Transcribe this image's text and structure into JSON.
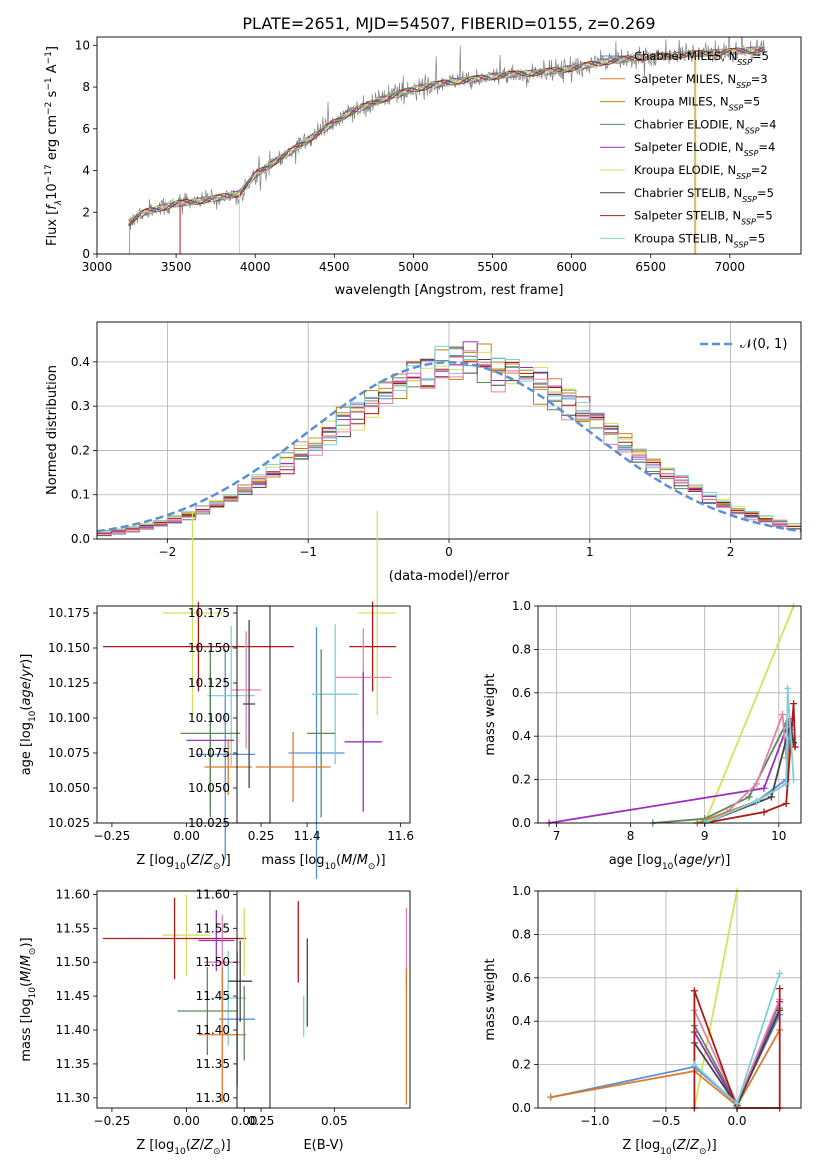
{
  "figure_title": "PLATE=2651, MJD=54507, FIBERID=0155, z=0.269",
  "colors": {
    "Chabrier MILES": "#5b8fd6",
    "Salpeter MILES": "#e07a2d",
    "Kroupa MILES": "#b8860b",
    "Chabrier ELODIE": "#5a8a5a",
    "Salpeter ELODIE": "#9b30c0",
    "Kroupa ELODIE": "#d2e35a",
    "Chabrier STELIB": "#444444",
    "Salpeter STELIB": "#b01818",
    "Kroupa STELIB": "#7fd0d8",
    "pink": "#e580b0"
  },
  "legend_spectrum": [
    {
      "model": "Chabrier MILES",
      "label": "Chabrier MILES, N",
      "sub": "SSP",
      "tail": "=5"
    },
    {
      "model": "Salpeter MILES",
      "label": "Salpeter MILES, N",
      "sub": "SSP",
      "tail": "=3"
    },
    {
      "model": "Kroupa MILES",
      "label": "Kroupa MILES, N",
      "sub": "SSP",
      "tail": "=5"
    },
    {
      "model": "Chabrier ELODIE",
      "label": "Chabrier ELODIE, N",
      "sub": "SSP",
      "tail": "=4"
    },
    {
      "model": "Salpeter ELODIE",
      "label": "Salpeter ELODIE, N",
      "sub": "SSP",
      "tail": "=4"
    },
    {
      "model": "Kroupa ELODIE",
      "label": "Kroupa ELODIE, N",
      "sub": "SSP",
      "tail": "=2"
    },
    {
      "model": "Chabrier STELIB",
      "label": "Chabrier STELIB, N",
      "sub": "SSP",
      "tail": "=5"
    },
    {
      "model": "Salpeter STELIB",
      "label": "Salpeter STELIB, N",
      "sub": "SSP",
      "tail": "=5"
    },
    {
      "model": "Kroupa STELIB",
      "label": "Kroupa STELIB, N",
      "sub": "SSP",
      "tail": "=5"
    }
  ],
  "chart_data": [
    {
      "id": "spectrum",
      "type": "line",
      "xlabel": "wavelength [Angstrom, rest frame]",
      "ylabel": "Flux [f_λ10^-17 erg cm^-2 s^-1 A^-1]",
      "xlim": [
        3000,
        7450
      ],
      "ylim": [
        0,
        10.4
      ],
      "xticks": [
        "3000",
        "3500",
        "4000",
        "4500",
        "5000",
        "5500",
        "6000",
        "6500",
        "7000"
      ],
      "yticks": [
        "0",
        "2",
        "4",
        "6",
        "8",
        "10"
      ],
      "grid": false,
      "continuum": [
        [
          3200,
          1.5
        ],
        [
          3300,
          2.0
        ],
        [
          3500,
          2.4
        ],
        [
          3700,
          2.6
        ],
        [
          3900,
          2.9
        ],
        [
          4000,
          3.8
        ],
        [
          4200,
          4.8
        ],
        [
          4400,
          5.8
        ],
        [
          4600,
          6.8
        ],
        [
          4800,
          7.4
        ],
        [
          5000,
          7.9
        ],
        [
          5200,
          8.2
        ],
        [
          5400,
          8.4
        ],
        [
          5600,
          8.6
        ],
        [
          5800,
          8.7
        ],
        [
          6000,
          8.9
        ],
        [
          6200,
          9.2
        ],
        [
          6400,
          9.4
        ],
        [
          6600,
          9.5
        ],
        [
          6800,
          9.6
        ],
        [
          7000,
          9.7
        ],
        [
          7200,
          9.8
        ]
      ],
      "spectrum_start": 3200,
      "spectrum_end": 7220,
      "legend_position": "upper right"
    },
    {
      "id": "residuals",
      "type": "histogram",
      "xlabel": "(data-model)/error",
      "ylabel": "Normed distribution",
      "xlim": [
        -2.5,
        2.5
      ],
      "ylim": [
        0,
        0.49
      ],
      "xticks": [
        "−2",
        "−1",
        "0",
        "1",
        "2"
      ],
      "yticks": [
        "0.0",
        "0.1",
        "0.2",
        "0.3",
        "0.4"
      ],
      "grid": true,
      "bin_width": 0.1,
      "reference_curve": {
        "name": "N(0,1)",
        "label": "𝒩(0, 1)",
        "mean": 0,
        "sigma": 1,
        "style": "dashed"
      },
      "legend_position": "upper right"
    },
    {
      "id": "age-vs-Z",
      "type": "errorbar",
      "xlabel": "Z [log10(Z/Z⊙)]",
      "ylabel": "age [log10(age/yr)]",
      "xlim": [
        -0.3,
        0.28
      ],
      "ylim": [
        10.025,
        10.18
      ],
      "xticks": [
        "−0.25",
        "0.00",
        "0.25"
      ],
      "yticks": [
        "10.025",
        "10.050",
        "10.075",
        "10.100",
        "10.125",
        "10.150",
        "10.175"
      ],
      "points": [
        {
          "model": "Kroupa ELODIE",
          "x": 0.02,
          "xerr": 0.1,
          "y": 10.175,
          "yerr": 0.073
        },
        {
          "model": "Salpeter STELIB",
          "x": 0.04,
          "xerr": 0.32,
          "y": 10.151,
          "yerr": 0.032
        },
        {
          "model": "Chabrier MILES",
          "x": 0.13,
          "xerr": 0.1,
          "y": 10.074,
          "yerr": 0.075
        },
        {
          "model": "pink",
          "x": 0.2,
          "xerr": 0.05,
          "y": 10.12,
          "yerr": 0.042
        },
        {
          "model": "Kroupa STELIB",
          "x": 0.15,
          "xerr": 0.08,
          "y": 10.116,
          "yerr": 0.05
        },
        {
          "model": "Salpeter ELODIE",
          "x": 0.08,
          "xerr": 0.08,
          "y": 10.084,
          "yerr": 0.05
        },
        {
          "model": "Chabrier ELODIE",
          "x": 0.08,
          "xerr": 0.1,
          "y": 10.089,
          "yerr": 0.06
        },
        {
          "model": "Salpeter MILES",
          "x": 0.14,
          "xerr": 0.08,
          "y": 10.065,
          "yerr": 0.02
        },
        {
          "model": "Chabrier STELIB",
          "x": 0.21,
          "xerr": 0.02,
          "y": 10.11,
          "yerr": 0.06
        }
      ]
    },
    {
      "id": "age-vs-mass",
      "type": "errorbar",
      "xlabel": "mass [log10(M/M⊙)]",
      "ylabel": "",
      "xlim": [
        11.25,
        11.62
      ],
      "ylim": [
        10.025,
        10.18
      ],
      "xticks": [
        "11.4",
        "11.6"
      ],
      "yticks": [
        "10.025",
        "10.050",
        "10.075",
        "10.100",
        "10.125",
        "10.150",
        "10.175"
      ],
      "points": [
        {
          "model": "Kroupa ELODIE",
          "x": 11.55,
          "xerr": 0.04,
          "y": 10.175,
          "yerr": 0.073
        },
        {
          "model": "Salpeter STELIB",
          "x": 11.54,
          "xerr": 0.05,
          "y": 10.151,
          "yerr": 0.032
        },
        {
          "model": "Chabrier MILES",
          "x": 11.42,
          "xerr": 0.06,
          "y": 10.075,
          "yerr": 0.09
        },
        {
          "model": "pink",
          "x": 11.52,
          "xerr": 0.06,
          "y": 10.129,
          "yerr": 0.035
        },
        {
          "model": "Kroupa STELIB",
          "x": 11.46,
          "xerr": 0.05,
          "y": 10.117,
          "yerr": 0.05
        },
        {
          "model": "Salpeter ELODIE",
          "x": 11.52,
          "xerr": 0.04,
          "y": 10.083,
          "yerr": 0.05
        },
        {
          "model": "Chabrier ELODIE",
          "x": 11.43,
          "xerr": 0.03,
          "y": 10.089,
          "yerr": 0.06
        },
        {
          "model": "Salpeter MILES",
          "x": 11.37,
          "xerr": 0.08,
          "y": 10.065,
          "yerr": 0.025
        }
      ]
    },
    {
      "id": "weight-vs-age",
      "type": "line",
      "xlabel": "age [log10(age/yr)]",
      "ylabel": "mass weight",
      "xlim": [
        6.75,
        10.3
      ],
      "ylim": [
        0,
        1
      ],
      "xticks": [
        "7",
        "8",
        "9",
        "10"
      ],
      "yticks": [
        "0.0",
        "0.2",
        "0.4",
        "0.6",
        "0.8",
        "1.0"
      ],
      "grid": true,
      "series": [
        {
          "model": "Kroupa ELODIE",
          "points": [
            [
              9.0,
              0.0
            ],
            [
              10.2,
              1.0
            ]
          ]
        },
        {
          "model": "Salpeter ELODIE",
          "points": [
            [
              6.9,
              0.0
            ],
            [
              9.8,
              0.16
            ],
            [
              10.15,
              0.48
            ],
            [
              10.2,
              0.37
            ]
          ]
        },
        {
          "model": "Chabrier ELODIE",
          "points": [
            [
              8.3,
              0.0
            ],
            [
              9.0,
              0.02
            ],
            [
              9.6,
              0.12
            ],
            [
              10.1,
              0.46
            ],
            [
              10.15,
              0.38
            ]
          ]
        },
        {
          "model": "pink",
          "points": [
            [
              8.9,
              0.0
            ],
            [
              9.3,
              0.05
            ],
            [
              9.7,
              0.18
            ],
            [
              10.05,
              0.5
            ],
            [
              10.1,
              0.3
            ]
          ]
        },
        {
          "model": "Chabrier MILES",
          "points": [
            [
              8.9,
              0.0
            ],
            [
              9.7,
              0.1
            ],
            [
              10.1,
              0.2
            ],
            [
              10.15,
              0.43
            ]
          ]
        },
        {
          "model": "Salpeter MILES",
          "points": [
            [
              8.9,
              0.0
            ],
            [
              9.7,
              0.1
            ],
            [
              10.1,
              0.18
            ],
            [
              10.15,
              0.36
            ]
          ]
        },
        {
          "model": "Salpeter STELIB",
          "points": [
            [
              9.0,
              0.0
            ],
            [
              9.8,
              0.05
            ],
            [
              10.1,
              0.09
            ],
            [
              10.2,
              0.55
            ],
            [
              10.22,
              0.35
            ]
          ]
        },
        {
          "model": "Chabrier STELIB",
          "points": [
            [
              9.0,
              0.0
            ],
            [
              9.9,
              0.12
            ],
            [
              10.15,
              0.45
            ],
            [
              10.2,
              0.37
            ]
          ]
        },
        {
          "model": "Kroupa STELIB",
          "points": [
            [
              9.0,
              0.0
            ],
            [
              9.7,
              0.1
            ],
            [
              10.1,
              0.18
            ],
            [
              10.12,
              0.62
            ],
            [
              10.2,
              0.2
            ]
          ]
        }
      ]
    },
    {
      "id": "mass-vs-Z",
      "type": "errorbar",
      "xlabel": "Z [log10(Z/Z⊙)]",
      "ylabel": "mass [log10(M/M⊙)]",
      "xlim": [
        -0.3,
        0.28
      ],
      "ylim": [
        11.285,
        11.605
      ],
      "xticks": [
        "−0.25",
        "0.00",
        "0.25"
      ],
      "yticks": [
        "11.30",
        "11.35",
        "11.40",
        "11.45",
        "11.50",
        "11.55",
        "11.60"
      ],
      "points": [
        {
          "model": "Kroupa ELODIE",
          "x": 0.0,
          "xerr": 0.08,
          "y": 11.54,
          "yerr": 0.06
        },
        {
          "model": "Salpeter STELIB",
          "x": -0.04,
          "xerr": 0.24,
          "y": 11.535,
          "yerr": 0.06
        },
        {
          "model": "pink",
          "x": 0.12,
          "xerr": 0.06,
          "y": 11.5,
          "yerr": 0.07
        },
        {
          "model": "Salpeter ELODIE",
          "x": 0.1,
          "xerr": 0.06,
          "y": 11.532,
          "yerr": 0.045
        },
        {
          "model": "Kroupa STELIB",
          "x": 0.14,
          "xerr": 0.06,
          "y": 11.447,
          "yerr": 0.07
        },
        {
          "model": "Chabrier ELODIE",
          "x": 0.07,
          "xerr": 0.1,
          "y": 11.428,
          "yerr": 0.065
        },
        {
          "model": "Chabrier MILES",
          "x": 0.17,
          "xerr": 0.06,
          "y": 11.416,
          "yerr": 0.1
        },
        {
          "model": "Salpeter MILES",
          "x": 0.12,
          "xerr": 0.08,
          "y": 11.393,
          "yerr": 0.1
        },
        {
          "model": "Chabrier STELIB",
          "x": 0.18,
          "xerr": 0.04,
          "y": 11.472,
          "yerr": 0.06
        }
      ]
    },
    {
      "id": "mass-vs-ebv",
      "type": "errorbar",
      "xlabel": "E(B-V)",
      "ylabel": "",
      "xlim": [
        -0.004,
        0.092
      ],
      "ylim": [
        11.285,
        11.605
      ],
      "xticks": [
        "0.00",
        "0.05"
      ],
      "yticks": [
        "11.30",
        "11.35",
        "11.40",
        "11.45",
        "11.50",
        "11.55",
        "11.60"
      ],
      "points": [
        {
          "model": "Kroupa ELODIE",
          "x": 0.0,
          "xerr": 0,
          "y": 11.53,
          "yerr": 0.05
        },
        {
          "model": "Chabrier ELODIE",
          "x": 0.0,
          "xerr": 0,
          "y": 11.41,
          "yerr": 0.055
        },
        {
          "model": "Salpeter STELIB",
          "x": 0.03,
          "xerr": 0,
          "y": 11.53,
          "yerr": 0.06
        },
        {
          "model": "Chabrier STELIB",
          "x": 0.035,
          "xerr": 0,
          "y": 11.47,
          "yerr": 0.065
        },
        {
          "model": "Kroupa STELIB",
          "x": 0.033,
          "xerr": 0,
          "y": 11.42,
          "yerr": 0.03
        },
        {
          "model": "pink",
          "x": 0.09,
          "xerr": 0,
          "y": 11.52,
          "yerr": 0.06
        },
        {
          "model": "Salpeter MILES",
          "x": 0.09,
          "xerr": 0,
          "y": 11.39,
          "yerr": 0.1
        }
      ]
    },
    {
      "id": "weight-vs-Z",
      "type": "line",
      "xlabel": "Z [log10(Z/Z⊙)]",
      "ylabel": "mass weight",
      "xlim": [
        -1.4,
        0.45
      ],
      "ylim": [
        0,
        1
      ],
      "xticks": [
        "−1.0",
        "−0.5",
        "0.0"
      ],
      "yticks": [
        "0.0",
        "0.2",
        "0.4",
        "0.6",
        "0.8",
        "1.0"
      ],
      "grid": true,
      "series": [
        {
          "model": "Kroupa ELODIE",
          "points": [
            [
              -0.3,
              0.0
            ],
            [
              0.0,
              1.0
            ]
          ]
        },
        {
          "model": "Chabrier MILES",
          "points": [
            [
              -1.31,
              0.05
            ],
            [
              -0.3,
              0.19
            ],
            [
              0.0,
              0.02
            ],
            [
              0.3,
              0.43
            ]
          ]
        },
        {
          "model": "Salpeter MILES",
          "points": [
            [
              -1.31,
              0.05
            ],
            [
              -0.3,
              0.17
            ],
            [
              0.0,
              0.01
            ],
            [
              0.3,
              0.36
            ]
          ]
        },
        {
          "model": "Chabrier ELODIE",
          "points": [
            [
              -0.3,
              0.38
            ],
            [
              0.0,
              0.02
            ],
            [
              0.3,
              0.46
            ]
          ]
        },
        {
          "model": "Salpeter ELODIE",
          "points": [
            [
              -0.3,
              0.35
            ],
            [
              0.0,
              0.01
            ],
            [
              0.3,
              0.49
            ]
          ]
        },
        {
          "model": "pink",
          "points": [
            [
              -0.3,
              0.45
            ],
            [
              0.0,
              0.02
            ],
            [
              0.3,
              0.5
            ]
          ]
        },
        {
          "model": "Chabrier STELIB",
          "points": [
            [
              -0.3,
              0.3
            ],
            [
              0.0,
              0.01
            ],
            [
              0.3,
              0.45
            ]
          ]
        },
        {
          "model": "Salpeter STELIB",
          "points": [
            [
              -0.3,
              0.0
            ],
            [
              -0.3,
              0.54
            ],
            [
              0.0,
              0.0
            ],
            [
              0.3,
              0.0
            ],
            [
              0.3,
              0.55
            ]
          ]
        },
        {
          "model": "Kroupa STELIB",
          "points": [
            [
              -0.3,
              0.2
            ],
            [
              0.0,
              0.02
            ],
            [
              0.3,
              0.62
            ]
          ]
        }
      ]
    }
  ]
}
